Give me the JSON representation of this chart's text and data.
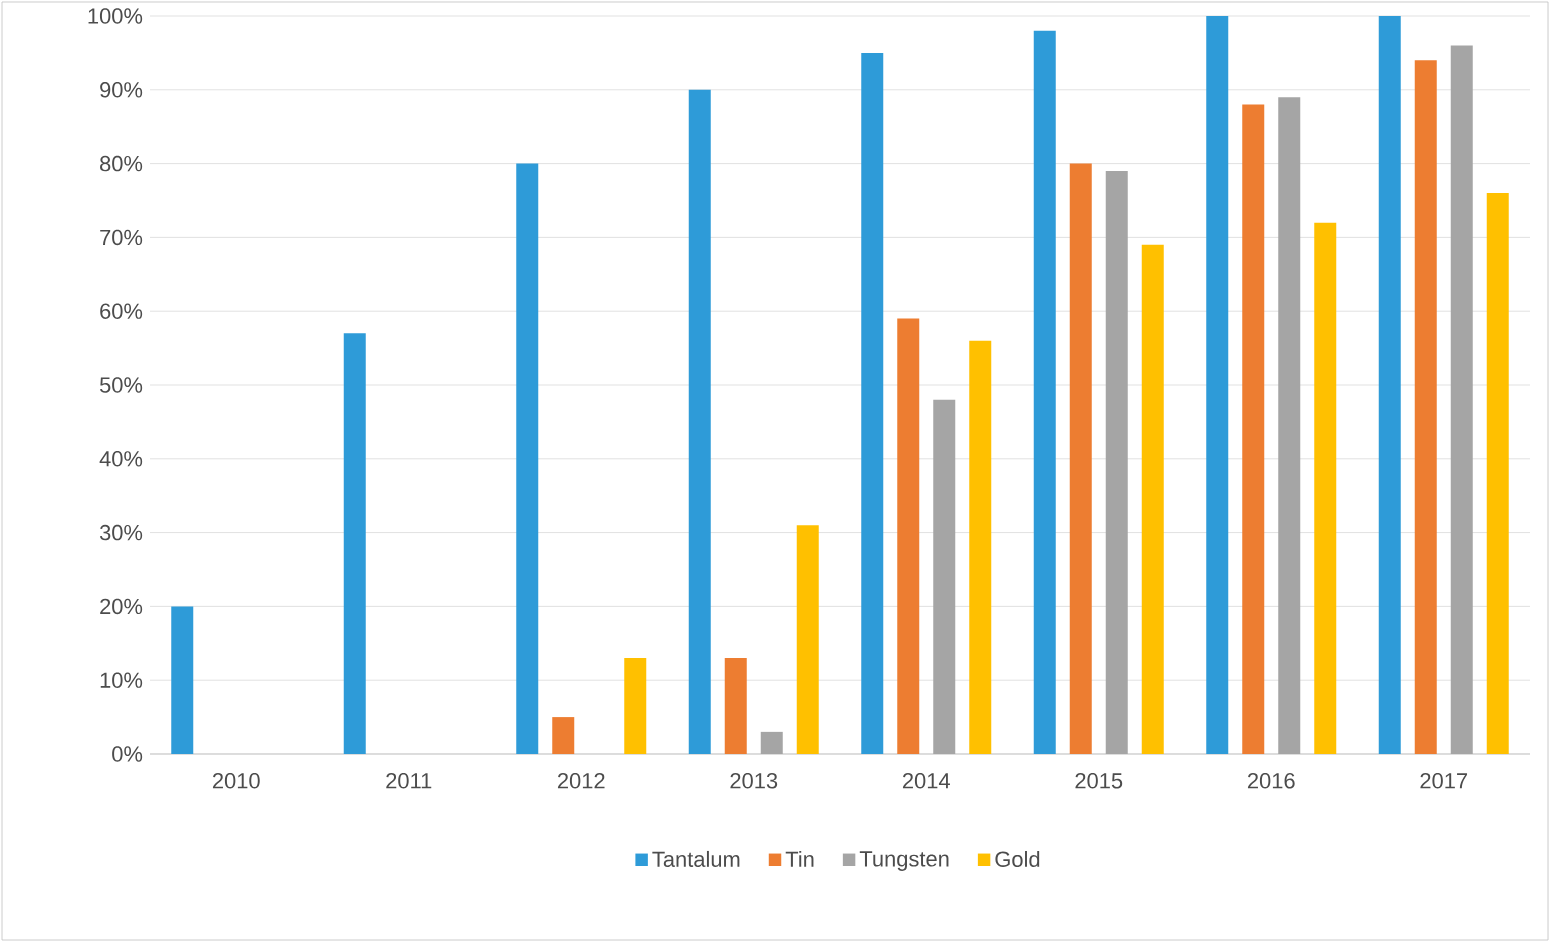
{
  "chart_data": {
    "type": "bar",
    "categories": [
      "2010",
      "2011",
      "2012",
      "2013",
      "2014",
      "2015",
      "2016",
      "2017"
    ],
    "series": [
      {
        "name": "Tantalum",
        "color": "#2e9bd8",
        "values": [
          20,
          57,
          80,
          90,
          95,
          98,
          100,
          100
        ]
      },
      {
        "name": "Tin",
        "color": "#ed7d31",
        "values": [
          0,
          0,
          5,
          13,
          59,
          80,
          88,
          94
        ]
      },
      {
        "name": "Tungsten",
        "color": "#a5a5a5",
        "values": [
          0,
          0,
          0,
          3,
          48,
          79,
          89,
          96
        ]
      },
      {
        "name": "Gold",
        "color": "#ffc000",
        "values": [
          0,
          0,
          13,
          31,
          56,
          69,
          72,
          76
        ]
      }
    ],
    "ylim": [
      0,
      100
    ],
    "yticks": [
      {
        "value": 0,
        "label": "0%"
      },
      {
        "value": 10,
        "label": "10%"
      },
      {
        "value": 20,
        "label": "20%"
      },
      {
        "value": 30,
        "label": "30%"
      },
      {
        "value": 40,
        "label": "40%"
      },
      {
        "value": 50,
        "label": "50%"
      },
      {
        "value": 60,
        "label": "60%"
      },
      {
        "value": 70,
        "label": "70%"
      },
      {
        "value": 80,
        "label": "80%"
      },
      {
        "value": 90,
        "label": "90%"
      },
      {
        "value": 100,
        "label": "100%"
      }
    ],
    "grid": "y",
    "legend": "bottom"
  }
}
